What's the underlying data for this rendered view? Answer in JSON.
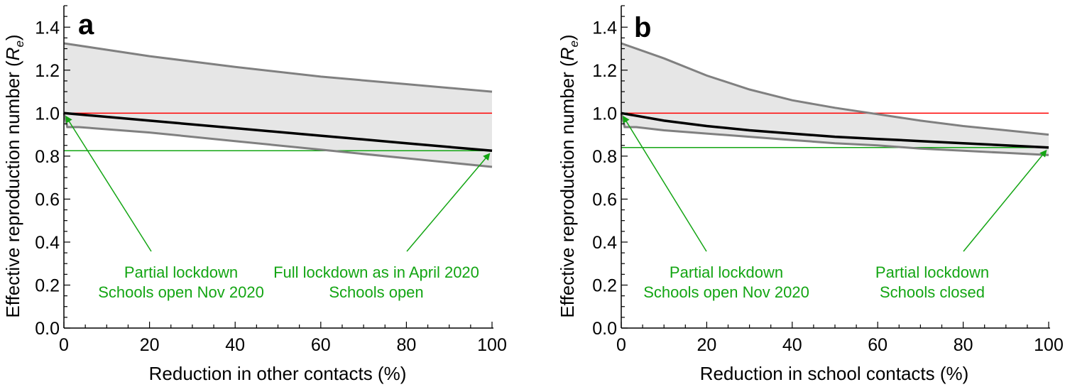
{
  "colors": {
    "band_fill": "#e6e6e6",
    "band_edge": "#808080",
    "central": "#000000",
    "threshold": "#ff0000",
    "target": "#13a513"
  },
  "chart_data": [
    {
      "type": "area",
      "panel_label": "a",
      "xlabel": "Reduction in other contacts (%)",
      "ylabel": "Effective reproduction number (Rₑ)",
      "ylabel_main": "Effective reproduction number (",
      "ylabel_sym": "R",
      "ylabel_sub": "e",
      "ylabel_close": ")",
      "xlim": [
        0,
        100
      ],
      "ylim": [
        0,
        1.5
      ],
      "xticks": [
        "0",
        "20",
        "40",
        "60",
        "80",
        "100"
      ],
      "yticks": [
        "0.0",
        "0.2",
        "0.4",
        "0.6",
        "0.8",
        "1.0",
        "1.2",
        "1.4"
      ],
      "x": [
        0,
        20,
        40,
        60,
        80,
        100
      ],
      "series": [
        {
          "name": "upper bound",
          "values": [
            1.325,
            1.265,
            1.215,
            1.17,
            1.135,
            1.1
          ]
        },
        {
          "name": "lower bound",
          "values": [
            1.0,
            0.91,
            0.87,
            0.83,
            0.79,
            0.75
          ]
        },
        {
          "name": "central estimate",
          "values": [
            1.0,
            0.965,
            0.93,
            0.895,
            0.86,
            0.825
          ]
        }
      ],
      "lower_start": [
        1.0,
        0.935,
        0.935
      ],
      "threshold": 1.0,
      "target_level": 0.825,
      "annotations": [
        {
          "lines": [
            "Partial lockdown",
            "Schools open Nov 2020"
          ],
          "arrow_to": [
            0,
            1.0
          ]
        },
        {
          "lines": [
            "Full lockdown as in April 2020",
            "Schools open"
          ],
          "arrow_to": [
            100,
            0.825
          ]
        }
      ]
    },
    {
      "type": "area",
      "panel_label": "b",
      "xlabel": "Reduction in school contacts (%)",
      "ylabel": "Effective reproduction number (Rₑ)",
      "ylabel_main": "Effective reproduction number (",
      "ylabel_sym": "R",
      "ylabel_sub": "e",
      "ylabel_close": ")",
      "xlim": [
        0,
        100
      ],
      "ylim": [
        0,
        1.5
      ],
      "xticks": [
        "0",
        "20",
        "40",
        "60",
        "80",
        "100"
      ],
      "yticks": [
        "0.0",
        "0.2",
        "0.4",
        "0.6",
        "0.8",
        "1.0",
        "1.2",
        "1.4"
      ],
      "x": [
        0,
        10,
        20,
        30,
        40,
        50,
        60,
        70,
        80,
        90,
        100
      ],
      "series": [
        {
          "name": "upper bound",
          "values": [
            1.325,
            1.255,
            1.175,
            1.11,
            1.06,
            1.025,
            0.995,
            0.965,
            0.94,
            0.92,
            0.9
          ]
        },
        {
          "name": "lower bound",
          "values": [
            1.0,
            0.92,
            0.905,
            0.89,
            0.875,
            0.86,
            0.85,
            0.835,
            0.825,
            0.815,
            0.805
          ]
        },
        {
          "name": "central estimate",
          "values": [
            1.0,
            0.965,
            0.94,
            0.92,
            0.905,
            0.89,
            0.88,
            0.87,
            0.86,
            0.85,
            0.84
          ]
        }
      ],
      "lower_start": [
        1.0,
        0.935,
        0.935
      ],
      "threshold": 1.0,
      "target_level": 0.84,
      "annotations": [
        {
          "lines": [
            "Partial lockdown",
            "Schools open Nov 2020"
          ],
          "arrow_to": [
            0,
            1.0
          ]
        },
        {
          "lines": [
            "Partial lockdown",
            "Schools closed"
          ],
          "arrow_to": [
            100,
            0.84
          ]
        }
      ]
    }
  ]
}
